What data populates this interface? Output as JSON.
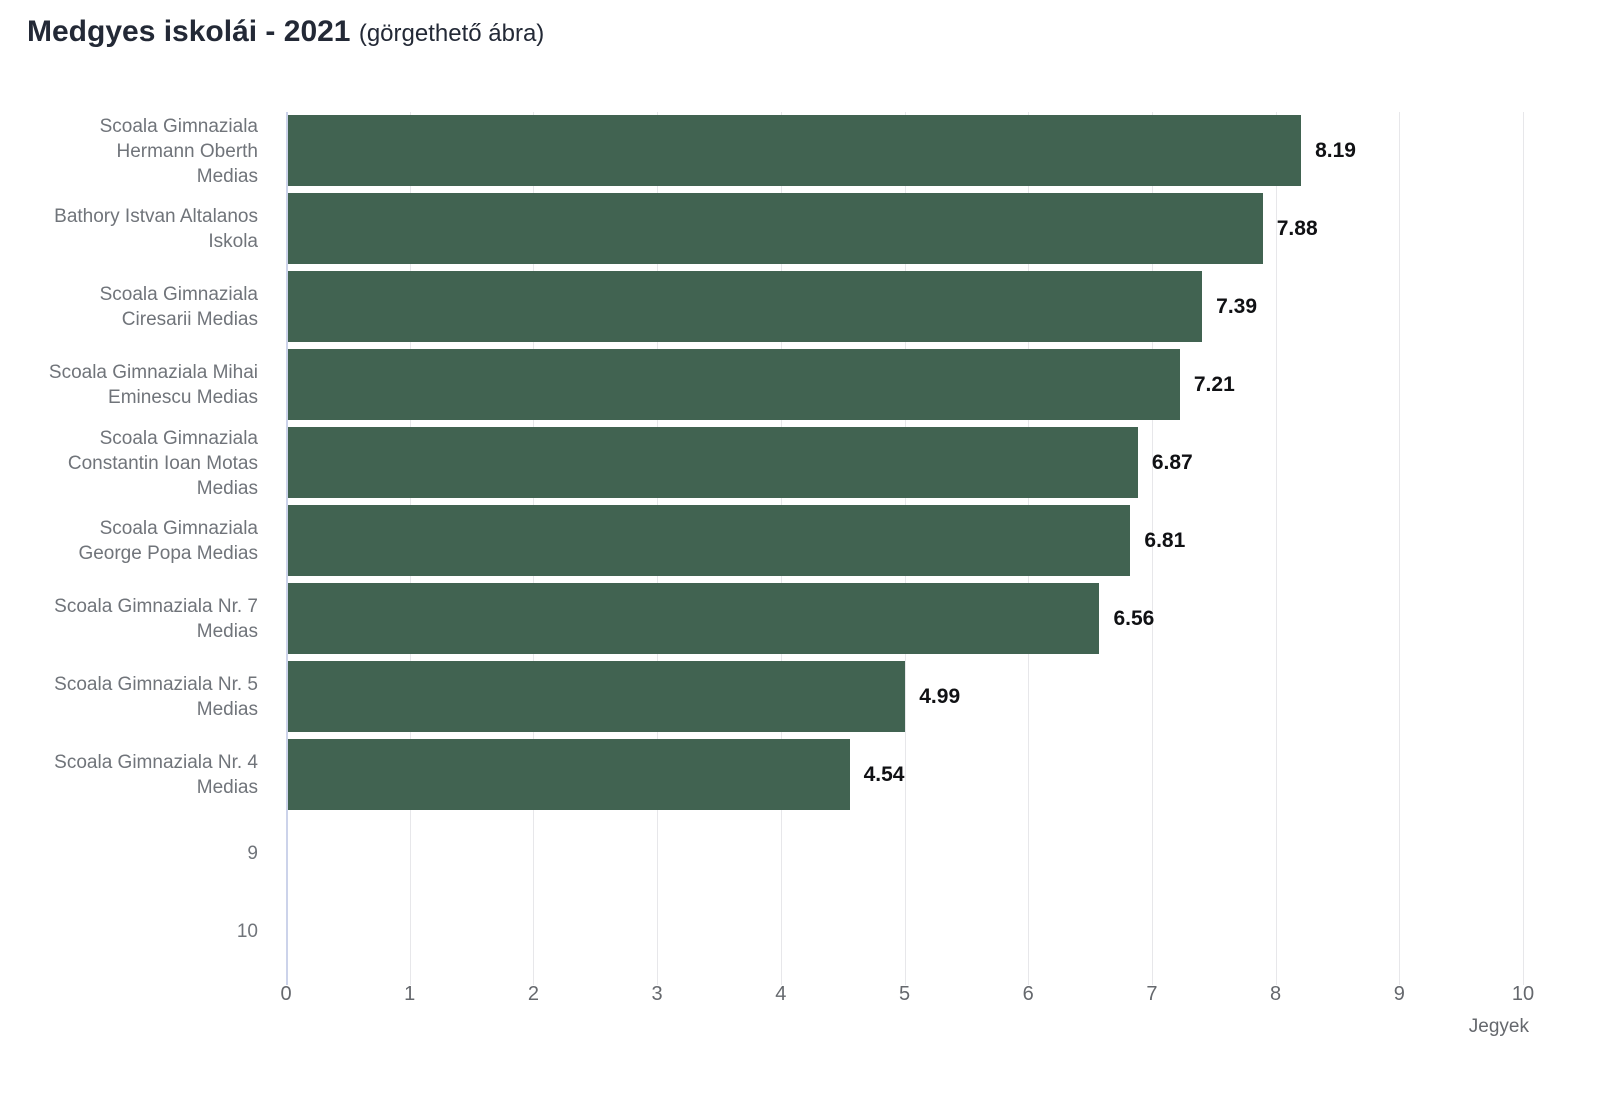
{
  "chart_data": {
    "type": "bar",
    "orientation": "horizontal",
    "title": "Medgyes iskolái - 2021",
    "subtitle": "(görgethető ábra)",
    "xlabel": "Jegyek",
    "xlim": [
      0,
      10
    ],
    "xticks": [
      0,
      1,
      2,
      3,
      4,
      5,
      6,
      7,
      8,
      9,
      10
    ],
    "grid": true,
    "bar_color": "#416351",
    "axis_line_color": "#ccd3ea",
    "gridline_color": "#e7e7ea",
    "categories": [
      "Scoala Gimnaziala\nHermann Oberth\nMedias",
      "Bathory Istvan Altalanos\nIskola",
      "Scoala Gimnaziala\nCiresarii Medias",
      "Scoala Gimnaziala Mihai\nEminescu Medias",
      "Scoala Gimnaziala\nConstantin Ioan Motas\nMedias",
      "Scoala Gimnaziala\nGeorge Popa Medias",
      "Scoala Gimnaziala Nr. 7\nMedias",
      "Scoala Gimnaziala Nr. 5\nMedias",
      "Scoala Gimnaziala Nr. 4\nMedias",
      "9",
      "10"
    ],
    "values": [
      8.19,
      7.88,
      7.39,
      7.21,
      6.87,
      6.81,
      6.56,
      4.99,
      4.54,
      null,
      null
    ],
    "value_labels": [
      "8.19",
      "7.88",
      "7.39",
      "7.21",
      "6.87",
      "6.81",
      "6.56",
      "4.99",
      "4.54"
    ]
  }
}
